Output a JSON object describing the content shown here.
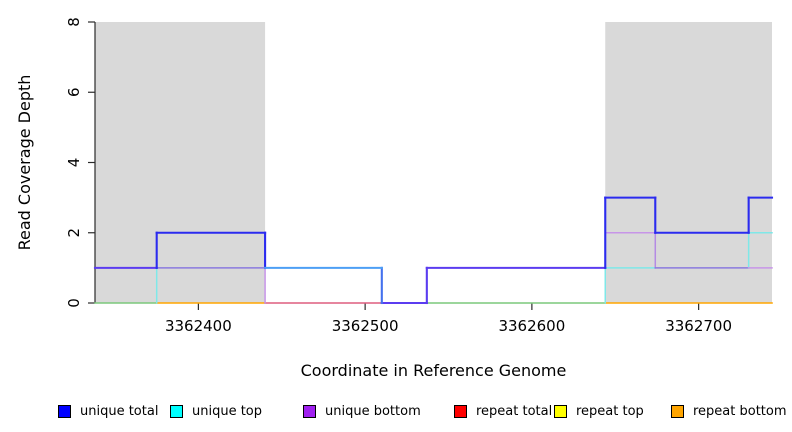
{
  "chart_data": {
    "type": "line",
    "subtype": "step-coverage",
    "title": "",
    "xlabel": "Coordinate in Reference Genome",
    "ylabel": "Read Coverage Depth",
    "xlim": [
      3362338,
      3362744
    ],
    "ylim": [
      0,
      8
    ],
    "x_ticks": [
      3362400,
      3362500,
      3362600,
      3362700
    ],
    "y_ticks": [
      0,
      2,
      4,
      6,
      8
    ],
    "grid": false,
    "legend_position": "bottom",
    "shaded_regions": [
      {
        "from": 3362338,
        "to": 3362440,
        "color": "#D9D9D9"
      },
      {
        "from": 3362644,
        "to": 3362744,
        "color": "#D9D9D9"
      }
    ],
    "breakpoints": [
      3362338,
      3362375,
      3362440,
      3362510,
      3362537,
      3362644,
      3362674,
      3362730,
      3362744
    ],
    "series": [
      {
        "name": "unique total",
        "color": "#0000FF",
        "values": [
          1,
          2,
          1,
          0,
          1,
          3,
          2,
          3
        ]
      },
      {
        "name": "unique top",
        "color": "#00FFFF",
        "values": [
          0,
          1,
          1,
          0,
          0,
          1,
          1,
          2
        ]
      },
      {
        "name": "unique bottom",
        "color": "#A020F0",
        "values": [
          1,
          1,
          0,
          0,
          1,
          2,
          1,
          1
        ]
      },
      {
        "name": "repeat total",
        "color": "#FF0000",
        "values": [
          0,
          0,
          0,
          0,
          0,
          0,
          0,
          0
        ]
      },
      {
        "name": "repeat top",
        "color": "#FFFF00",
        "values": [
          0,
          0,
          0,
          0,
          0,
          0,
          0,
          0
        ]
      },
      {
        "name": "repeat bottom",
        "color": "#FFA500",
        "values": [
          0,
          0,
          0,
          0,
          0,
          0,
          0,
          0
        ]
      }
    ],
    "rendered_segments": [
      {
        "o": "h",
        "at": 0,
        "from": 3362338,
        "to": 3362375,
        "color": "#7CC87C",
        "w": 1.5
      },
      {
        "o": "h",
        "at": 0,
        "from": 3362375,
        "to": 3362440,
        "color": "#FFA500",
        "w": 1.6
      },
      {
        "o": "h",
        "at": 0,
        "from": 3362440,
        "to": 3362510,
        "color": "#DE5D7F",
        "w": 1.5
      },
      {
        "o": "h",
        "at": 0,
        "from": 3362537,
        "to": 3362644,
        "color": "#7CC87C",
        "w": 1.5
      },
      {
        "o": "h",
        "at": 0,
        "from": 3362644,
        "to": 3362744,
        "color": "#FFA500",
        "w": 1.6
      },
      {
        "o": "v",
        "at": 3362375,
        "from": 0,
        "to": 1,
        "color": "#7FE8E8",
        "w": 1.5
      },
      {
        "o": "v",
        "at": 3362440,
        "from": 0,
        "to": 1,
        "color": "#C795E8",
        "w": 1.5
      },
      {
        "o": "h",
        "at": 1,
        "from": 3362375,
        "to": 3362440,
        "color": "#8A7ADF",
        "w": 1.5
      },
      {
        "o": "v",
        "at": 3362644,
        "from": 0,
        "to": 1,
        "color": "#7FE8E8",
        "w": 1.5
      },
      {
        "o": "h",
        "at": 2,
        "from": 3362644,
        "to": 3362674,
        "color": "#C795E8",
        "w": 1.5
      },
      {
        "o": "h",
        "at": 1,
        "from": 3362644,
        "to": 3362674,
        "color": "#7FE8E8",
        "w": 1.5
      },
      {
        "o": "v",
        "at": 3362674,
        "from": 1,
        "to": 2,
        "color": "#B48BE4",
        "w": 1.5
      },
      {
        "o": "h",
        "at": 1,
        "from": 3362674,
        "to": 3362730,
        "color": "#8A7ADF",
        "w": 1.5
      },
      {
        "o": "v",
        "at": 3362730,
        "from": 1,
        "to": 2,
        "color": "#7FE8E8",
        "w": 1.5
      },
      {
        "o": "h",
        "at": 2,
        "from": 3362730,
        "to": 3362744,
        "color": "#7FE8E8",
        "w": 1.5
      },
      {
        "o": "h",
        "at": 1,
        "from": 3362730,
        "to": 3362744,
        "color": "#C795E8",
        "w": 1.5
      },
      {
        "o": "h",
        "at": 0,
        "from": 3362510,
        "to": 3362537,
        "color": "#5B3CF0",
        "w": 2.1
      },
      {
        "o": "v",
        "at": 3362510,
        "from": 0,
        "to": 1,
        "color": "#4471EE",
        "w": 2.1
      },
      {
        "o": "v",
        "at": 3362537,
        "from": 0,
        "to": 1,
        "color": "#5B3CF0",
        "w": 2.1
      },
      {
        "o": "h",
        "at": 1,
        "from": 3362338,
        "to": 3362375,
        "color": "#5B3CF0",
        "w": 2.1
      },
      {
        "o": "v",
        "at": 3362375,
        "from": 1,
        "to": 2,
        "color": "#2B2BEF",
        "w": 2.1
      },
      {
        "o": "h",
        "at": 2,
        "from": 3362375,
        "to": 3362440,
        "color": "#2B2BEF",
        "w": 2.1
      },
      {
        "o": "v",
        "at": 3362440,
        "from": 1,
        "to": 2,
        "color": "#2B2BEF",
        "w": 2.1
      },
      {
        "o": "h",
        "at": 1,
        "from": 3362440,
        "to": 3362510,
        "color": "#4D9FF5",
        "w": 2.1
      },
      {
        "o": "h",
        "at": 1,
        "from": 3362537,
        "to": 3362644,
        "color": "#5B3CF0",
        "w": 2.1
      },
      {
        "o": "v",
        "at": 3362644,
        "from": 1,
        "to": 3,
        "color": "#2B2BEF",
        "w": 2.1
      },
      {
        "o": "h",
        "at": 3,
        "from": 3362644,
        "to": 3362674,
        "color": "#2B2BEF",
        "w": 2.1
      },
      {
        "o": "v",
        "at": 3362674,
        "from": 2,
        "to": 3,
        "color": "#2B2BEF",
        "w": 2.1
      },
      {
        "o": "h",
        "at": 2,
        "from": 3362674,
        "to": 3362730,
        "color": "#2B2BEF",
        "w": 2.1
      },
      {
        "o": "v",
        "at": 3362730,
        "from": 2,
        "to": 3,
        "color": "#2B2BEF",
        "w": 2.1
      },
      {
        "o": "h",
        "at": 3,
        "from": 3362730,
        "to": 3362744,
        "color": "#2B2BEF",
        "w": 2.1
      }
    ]
  },
  "legend": {
    "items": [
      {
        "label": "unique total",
        "color": "#0000FF"
      },
      {
        "label": "unique top",
        "color": "#00FFFF"
      },
      {
        "label": "unique bottom",
        "color": "#A020F0"
      },
      {
        "label": "repeat total",
        "color": "#FF0000"
      },
      {
        "label": "repeat top",
        "color": "#FFFF00"
      },
      {
        "label": "repeat bottom",
        "color": "#FFA500"
      }
    ]
  },
  "colors": {
    "shade": "#D9D9D9",
    "axis": "#2B2B2B",
    "text": "#000000"
  }
}
